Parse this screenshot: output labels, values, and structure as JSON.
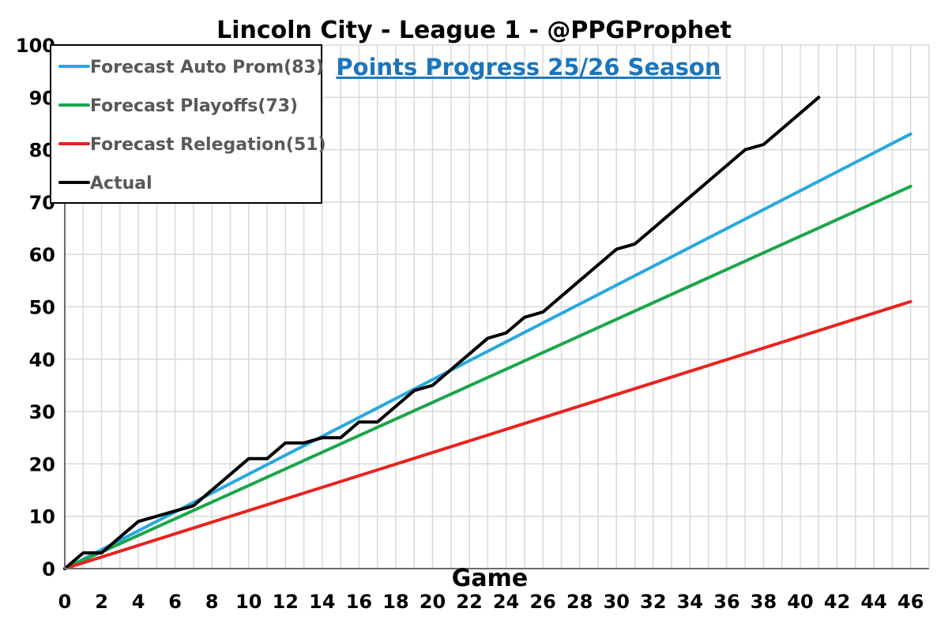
{
  "chart_data": {
    "type": "line",
    "title": "Lincoln City - League 1 - @PPGProphet",
    "subtitle": "Points Progress 25/26 Season",
    "xlabel": "Game",
    "ylabel": "",
    "xlim": [
      0,
      47
    ],
    "ylim": [
      0,
      100
    ],
    "xticks": [
      "0",
      "2",
      "4",
      "6",
      "8",
      "10",
      "12",
      "14",
      "16",
      "18",
      "20",
      "22",
      "24",
      "26",
      "28",
      "30",
      "32",
      "34",
      "36",
      "38",
      "40",
      "42",
      "44",
      "46"
    ],
    "yticks": [
      "0",
      "10",
      "20",
      "30",
      "40",
      "50",
      "60",
      "70",
      "80",
      "90",
      "100"
    ],
    "grid": true,
    "legend_position": "top-left",
    "series": [
      {
        "name": "Forecast Auto Prom(83)",
        "color": "#29a8e0",
        "x": [
          0,
          46
        ],
        "y": [
          0,
          83
        ]
      },
      {
        "name": "Forecast Playoffs(73)",
        "color": "#1aa64a",
        "x": [
          0,
          46
        ],
        "y": [
          0,
          73
        ]
      },
      {
        "name": "Forecast Relegation(51)",
        "color": "#e8231f",
        "x": [
          0,
          46
        ],
        "y": [
          0,
          51
        ]
      },
      {
        "name": "Actual",
        "color": "#000000",
        "x": [
          0,
          1,
          2,
          3,
          4,
          5,
          6,
          7,
          8,
          9,
          10,
          11,
          12,
          13,
          14,
          15,
          16,
          17,
          18,
          19,
          20,
          21,
          22,
          23,
          24,
          25,
          26,
          27,
          28,
          29,
          30,
          31,
          32,
          33,
          34,
          35,
          36,
          37,
          38,
          39,
          40,
          41
        ],
        "y": [
          0,
          3,
          3,
          6,
          9,
          10,
          11,
          12,
          15,
          18,
          21,
          21,
          24,
          24,
          25,
          25,
          28,
          28,
          31,
          34,
          35,
          38,
          41,
          44,
          45,
          48,
          49,
          52,
          55,
          58,
          61,
          62,
          65,
          68,
          71,
          74,
          77,
          80,
          81,
          84,
          87,
          90
        ]
      }
    ]
  }
}
